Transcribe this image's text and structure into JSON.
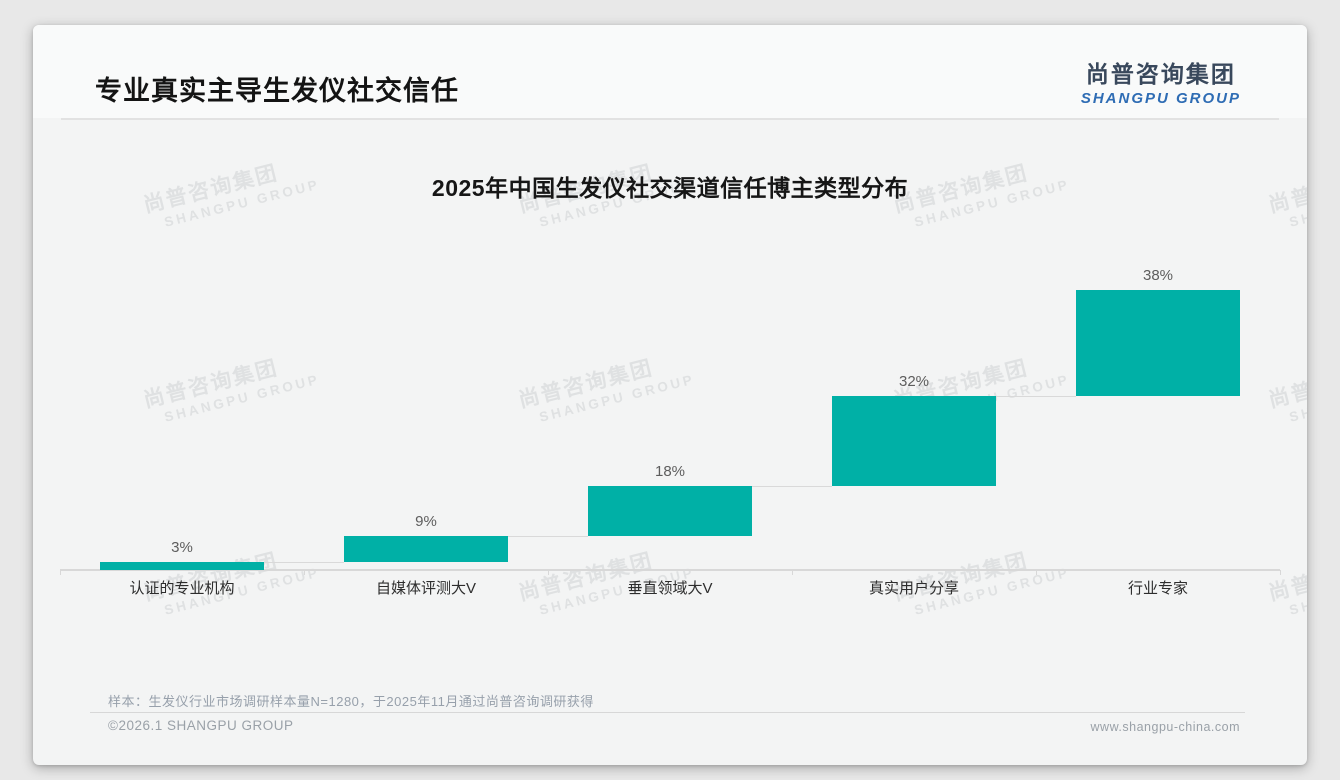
{
  "page": {
    "title": "专业真实主导生发仪社交信任"
  },
  "logo": {
    "cn": "尚普咨询集团",
    "en": "SHANGPU GROUP"
  },
  "watermark": {
    "line1": "尚普咨询集团",
    "line2": "SHANGPU GROUP"
  },
  "chart_data": {
    "type": "bar",
    "subtype": "waterfall",
    "title": "2025年中国生发仪社交渠道信任博主类型分布",
    "categories": [
      "认证的专业机构",
      "自媒体评测大V",
      "垂直领域大V",
      "真实用户分享",
      "行业专家"
    ],
    "values": [
      3,
      9,
      18,
      32,
      38
    ],
    "labels": [
      "3%",
      "9%",
      "18%",
      "32%",
      "38%"
    ],
    "cumulative": [
      3,
      12,
      30,
      62,
      100
    ],
    "unit": "%",
    "ylim": [
      0,
      100
    ],
    "grid": false,
    "legend": "none",
    "bar_color": "#00b0a6",
    "connector_color": "#d9d9d9",
    "axis_color": "#d8d8d8",
    "value_label_color": "#5d5d5d",
    "category_label_color": "#2d2d2d"
  },
  "footnote": {
    "sample_note": "样本：生发仪行业市场调研样本量N=1280，于2025年11月通过尚普咨询调研获得"
  },
  "footer": {
    "copyright": "©2026.1 SHANGPU GROUP",
    "website": "www.shangpu-china.com"
  }
}
